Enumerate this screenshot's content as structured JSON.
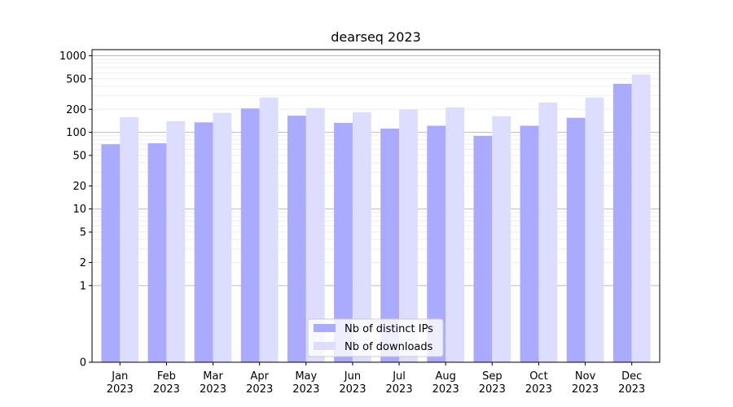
{
  "chart_data": {
    "type": "bar",
    "title": "dearseq 2023",
    "xlabel": "",
    "ylabel": "",
    "y_scale": "symlog",
    "ylim": [
      0,
      1200
    ],
    "y_ticks": [
      0,
      1,
      2,
      5,
      10,
      20,
      50,
      100,
      200,
      500,
      1000
    ],
    "grid": true,
    "legend_position": "bottom-center",
    "categories": [
      [
        "Jan",
        "2023"
      ],
      [
        "Feb",
        "2023"
      ],
      [
        "Mar",
        "2023"
      ],
      [
        "Apr",
        "2023"
      ],
      [
        "May",
        "2023"
      ],
      [
        "Jun",
        "2023"
      ],
      [
        "Jul",
        "2023"
      ],
      [
        "Aug",
        "2023"
      ],
      [
        "Sep",
        "2023"
      ],
      [
        "Oct",
        "2023"
      ],
      [
        "Nov",
        "2023"
      ],
      [
        "Dec",
        "2023"
      ]
    ],
    "series": [
      {
        "name": "Nb of distinct IPs",
        "color": "#aaaaff",
        "values": [
          70,
          72,
          135,
          205,
          165,
          133,
          112,
          122,
          90,
          122,
          155,
          430
        ]
      },
      {
        "name": "Nb of downloads",
        "color": "#ddddff",
        "values": [
          158,
          140,
          180,
          285,
          208,
          183,
          198,
          212,
          162,
          245,
          285,
          570
        ]
      }
    ]
  }
}
